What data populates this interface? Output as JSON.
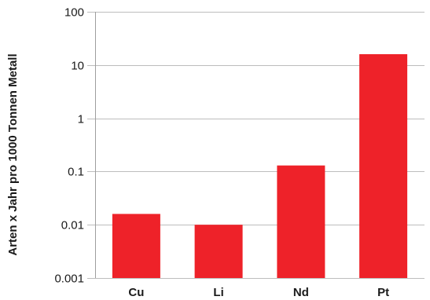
{
  "chart_data": {
    "type": "bar",
    "categories": [
      "Cu",
      "Li",
      "Nd",
      "Pt"
    ],
    "values": [
      0.016,
      0.01,
      0.13,
      16
    ],
    "title": "",
    "xlabel": "",
    "ylabel": "Arten x Jahr pro 1000 Tonnen Metall",
    "yscale": "log",
    "ylim": [
      0.001,
      100
    ],
    "yticks": [
      {
        "value": 0.001,
        "label": "0.001"
      },
      {
        "value": 0.01,
        "label": "0.01"
      },
      {
        "value": 0.1,
        "label": "0.1"
      },
      {
        "value": 1,
        "label": "1"
      },
      {
        "value": 10,
        "label": "10"
      },
      {
        "value": 100,
        "label": "100"
      }
    ],
    "grid": true,
    "legend": "none",
    "bar_color": "#ee2229"
  }
}
